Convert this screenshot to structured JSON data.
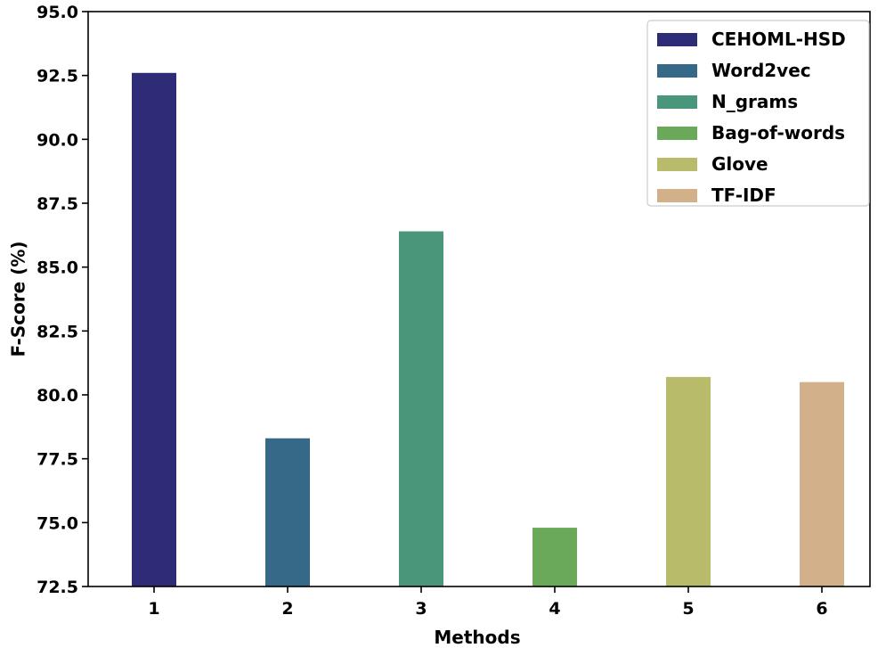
{
  "chart_data": {
    "type": "bar",
    "categories": [
      "1",
      "2",
      "3",
      "4",
      "5",
      "6"
    ],
    "series": [
      {
        "name": "CEHOML-HSD",
        "value": 92.6,
        "color": "#2e2c77"
      },
      {
        "name": "Word2vec",
        "value": 78.3,
        "color": "#366988"
      },
      {
        "name": "N_grams",
        "value": 86.4,
        "color": "#4a967a"
      },
      {
        "name": "Bag-of-words",
        "value": 74.8,
        "color": "#6aa95a"
      },
      {
        "name": "Glove",
        "value": 80.7,
        "color": "#b7bb6a"
      },
      {
        "name": "TF-IDF",
        "value": 80.5,
        "color": "#d2b08a"
      }
    ],
    "xlabel": "Methods",
    "ylabel": "F-Score (%)",
    "ylim": [
      72.5,
      95.0
    ],
    "yticks": [
      "72.5",
      "75.0",
      "77.5",
      "80.0",
      "82.5",
      "85.0",
      "87.5",
      "90.0",
      "92.5",
      "95.0"
    ],
    "grid": false,
    "legend_position": "top-right"
  }
}
